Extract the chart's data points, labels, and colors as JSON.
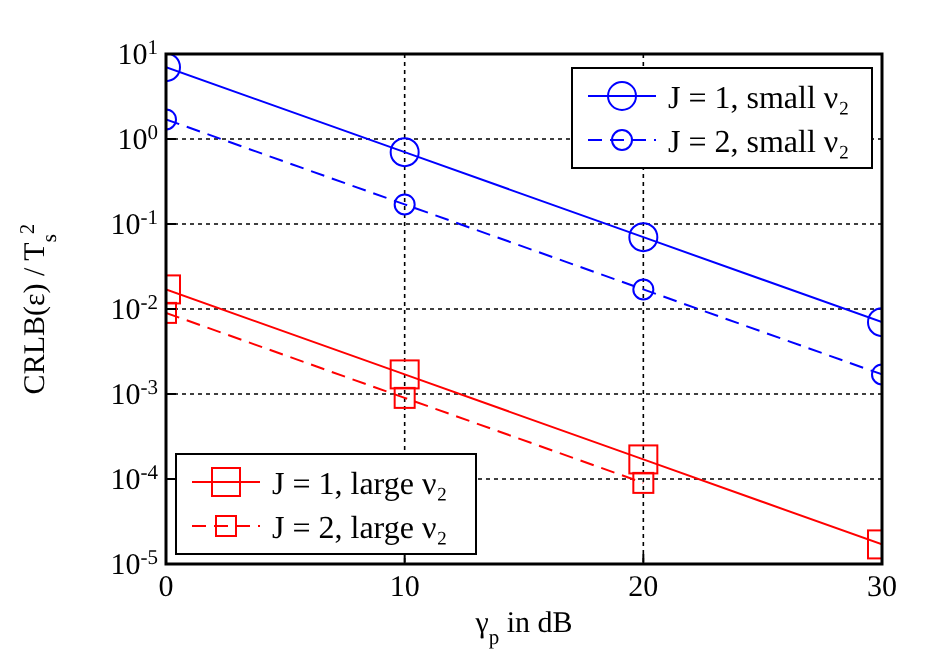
{
  "chart_data": {
    "type": "line",
    "xlabel": "γ$_{p}$ in dB",
    "ylabel": "CRLB(ε) / T$_{s}$$^{2}$",
    "x": [
      0,
      10,
      20,
      30
    ],
    "log": "y",
    "xlim": [
      0,
      30
    ],
    "xticks": [
      0,
      10,
      20,
      30
    ],
    "ylim": [
      1e-05,
      10
    ],
    "yticks": [
      {
        "value": 1e-05,
        "label": "10$^{-5}$"
      },
      {
        "value": 0.0001,
        "label": "10$^{-4}$"
      },
      {
        "value": 0.001,
        "label": "10$^{-3}$"
      },
      {
        "value": 0.01,
        "label": "10$^{-2}$"
      },
      {
        "value": 0.1,
        "label": "10$^{-1}$"
      },
      {
        "value": 1,
        "label": "10$^{0}$"
      },
      {
        "value": 10,
        "label": "10$^{1}$"
      }
    ],
    "grid": true,
    "legend": [
      "top right",
      "bottom left"
    ],
    "series": [
      {
        "name": "J = 1, small ν₂",
        "color": "#0000ff",
        "values": [
          7,
          0.7,
          0.07,
          0.007
        ],
        "marker": "circle",
        "line_style": "solid"
      },
      {
        "name": "J = 2, small ν₂",
        "color": "#0000ff",
        "values": [
          1.7,
          0.17,
          0.017,
          0.0017
        ],
        "marker": "circle",
        "line_style": "dashed"
      },
      {
        "name": "J = 1, large ν₂",
        "color": "#ff0000",
        "values": [
          0.017,
          0.0017,
          0.00017,
          1.7e-05
        ],
        "marker": "square",
        "line_style": "solid"
      },
      {
        "name": "J = 2, large ν₂",
        "color": "#ff0000",
        "values": [
          0.009,
          0.0009,
          9e-05,
          null
        ],
        "marker": "square",
        "line_style": "dashed"
      }
    ]
  }
}
